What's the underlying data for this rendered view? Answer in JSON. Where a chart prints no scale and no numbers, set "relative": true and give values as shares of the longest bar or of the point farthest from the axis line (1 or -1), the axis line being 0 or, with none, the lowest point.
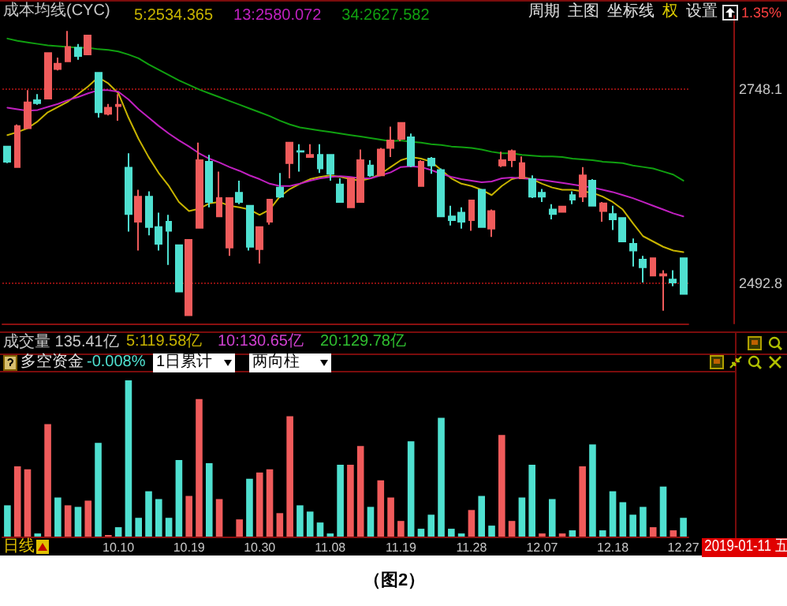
{
  "chart_data": [
    {
      "type": "candlestick",
      "title": "成本均线(CYC)",
      "categories": [
        null,
        null,
        null,
        null,
        null,
        null,
        null,
        null,
        null,
        null,
        null,
        "10.10",
        null,
        null,
        null,
        null,
        null,
        null,
        "10.19",
        null,
        null,
        null,
        null,
        null,
        null,
        "10.30",
        null,
        null,
        null,
        null,
        null,
        null,
        "11.08",
        null,
        null,
        null,
        null,
        null,
        null,
        "11.19",
        null,
        null,
        null,
        null,
        null,
        null,
        "11.28",
        null,
        null,
        null,
        null,
        null,
        null,
        "12.07",
        null,
        null,
        null,
        null,
        null,
        null,
        "12.18",
        null,
        null,
        null,
        null,
        null,
        null,
        "12.27"
      ],
      "ohlc": [
        [
          2673,
          2674,
          2651,
          2653
        ],
        [
          2646,
          2702,
          2646,
          2700
        ],
        [
          2697,
          2747,
          2697,
          2731
        ],
        [
          2734,
          2742,
          2728,
          2730
        ],
        [
          2736,
          2796,
          2736,
          2796
        ],
        [
          2775,
          2790,
          2773,
          2782
        ],
        [
          2785,
          2825,
          2785,
          2804
        ],
        [
          2803,
          2808,
          2787,
          2792
        ],
        [
          2794,
          2819,
          2794,
          2819
        ],
        [
          2770,
          2770,
          2711,
          2718
        ],
        [
          2716,
          2729,
          2714,
          2724
        ],
        [
          2726,
          2742,
          2707,
          2728
        ],
        [
          2645,
          2664,
          2561,
          2584
        ],
        [
          2574,
          2616,
          2536,
          2607
        ],
        [
          2607,
          2614,
          2556,
          2567
        ],
        [
          2567,
          2586,
          2536,
          2545
        ],
        [
          2574,
          2583,
          2517,
          2562
        ],
        [
          2543,
          2543,
          2482,
          2482
        ],
        [
          2451,
          2550,
          2451,
          2550
        ],
        [
          2566,
          2678,
          2566,
          2655
        ],
        [
          2653,
          2662,
          2593,
          2600
        ],
        [
          2581,
          2640,
          2581,
          2605
        ],
        [
          2540,
          2605,
          2529,
          2605
        ],
        [
          2612,
          2628,
          2597,
          2600
        ],
        [
          2595,
          2595,
          2536,
          2541
        ],
        [
          2538,
          2567,
          2519,
          2567
        ],
        [
          2574,
          2603,
          2570,
          2603
        ],
        [
          2619,
          2638,
          2605,
          2607
        ],
        [
          2651,
          2678,
          2631,
          2678
        ],
        [
          2667,
          2676,
          2640,
          2666
        ],
        [
          2659,
          2676,
          2659,
          2662
        ],
        [
          2662,
          2676,
          2638,
          2644
        ],
        [
          2662,
          2662,
          2628,
          2637
        ],
        [
          2623,
          2631,
          2600,
          2600
        ],
        [
          2593,
          2631,
          2593,
          2631
        ],
        [
          2600,
          2669,
          2600,
          2655
        ],
        [
          2648,
          2655,
          2633,
          2635
        ],
        [
          2635,
          2671,
          2635,
          2669
        ],
        [
          2671,
          2699,
          2659,
          2681
        ],
        [
          2683,
          2704,
          2680,
          2704
        ],
        [
          2685,
          2690,
          2646,
          2648
        ],
        [
          2621,
          2655,
          2621,
          2653
        ],
        [
          2657,
          2659,
          2637,
          2648
        ],
        [
          2642,
          2644,
          2581,
          2581
        ],
        [
          2581,
          2595,
          2569,
          2576
        ],
        [
          2586,
          2593,
          2565,
          2574
        ],
        [
          2576,
          2603,
          2562,
          2602
        ],
        [
          2616,
          2616,
          2567,
          2567
        ],
        [
          2565,
          2590,
          2554,
          2588
        ],
        [
          2648,
          2666,
          2646,
          2655
        ],
        [
          2655,
          2669,
          2646,
          2667
        ],
        [
          2631,
          2660,
          2631,
          2651
        ],
        [
          2630,
          2635,
          2605,
          2607
        ],
        [
          2612,
          2617,
          2600,
          2607
        ],
        [
          2590,
          2597,
          2577,
          2584
        ],
        [
          2587,
          2594,
          2587,
          2594
        ],
        [
          2609,
          2614,
          2597,
          2603
        ],
        [
          2607,
          2646,
          2600,
          2635
        ],
        [
          2628,
          2630,
          2595,
          2595
        ],
        [
          2588,
          2600,
          2574,
          2598
        ],
        [
          2584,
          2595,
          2563,
          2577
        ],
        [
          2579,
          2579,
          2547,
          2548
        ],
        [
          2545,
          2552,
          2515,
          2536
        ],
        [
          2524,
          2529,
          2494,
          2514
        ],
        [
          2503,
          2526,
          2503,
          2526
        ],
        [
          2503,
          2510,
          2457,
          2505
        ],
        [
          2498,
          2510,
          2489,
          2494
        ],
        [
          2526,
          2527,
          2478,
          2479
        ]
      ],
      "colors": [
        "#4fe0d0",
        "#f05b5b",
        "#f05b5b",
        "#4fe0d0",
        "#f05b5b",
        "#f05b5b",
        "#f05b5b",
        "#4fe0d0",
        "#f05b5b",
        "#4fe0d0",
        "#f05b5b",
        "#f05b5b",
        "#4fe0d0",
        "#f05b5b",
        "#4fe0d0",
        "#4fe0d0",
        "#4fe0d0",
        "#4fe0d0",
        "#f05b5b",
        "#f05b5b",
        "#4fe0d0",
        "#f05b5b",
        "#f05b5b",
        "#4fe0d0",
        "#4fe0d0",
        "#f05b5b",
        "#f05b5b",
        "#4fe0d0",
        "#f05b5b",
        "#4fe0d0",
        "#f05b5b",
        "#4fe0d0",
        "#4fe0d0",
        "#4fe0d0",
        "#f05b5b",
        "#f05b5b",
        "#4fe0d0",
        "#f05b5b",
        "#f05b5b",
        "#f05b5b",
        "#4fe0d0",
        "#f05b5b",
        "#4fe0d0",
        "#4fe0d0",
        "#4fe0d0",
        "#4fe0d0",
        "#f05b5b",
        "#4fe0d0",
        "#f05b5b",
        "#f05b5b",
        "#f05b5b",
        "#f05b5b",
        "#4fe0d0",
        "#4fe0d0",
        "#4fe0d0",
        "#f05b5b",
        "#4fe0d0",
        "#f05b5b",
        "#4fe0d0",
        "#f05b5b",
        "#4fe0d0",
        "#4fe0d0",
        "#4fe0d0",
        "#4fe0d0",
        "#f05b5b",
        "#f05b5b",
        "#4fe0d0",
        "#4fe0d0"
      ],
      "series": [
        {
          "type": "line",
          "name": "5:2534.365",
          "color": "#c8b400",
          "values": [
            2688,
            2692,
            2697,
            2706,
            2718,
            2725,
            2732,
            2742,
            2752,
            2764,
            2756,
            2743,
            2711,
            2683,
            2659,
            2638,
            2621,
            2600,
            2588,
            2591,
            2598,
            2600,
            2595,
            2593,
            2590,
            2583,
            2590,
            2607,
            2617,
            2624,
            2630,
            2633,
            2635,
            2633,
            2630,
            2628,
            2631,
            2637,
            2646,
            2655,
            2659,
            2657,
            2653,
            2642,
            2631,
            2624,
            2621,
            2616,
            2609,
            2621,
            2630,
            2633,
            2630,
            2624,
            2619,
            2616,
            2616,
            2614,
            2612,
            2607,
            2600,
            2590,
            2572,
            2555,
            2548,
            2541,
            2536,
            2534
          ]
        },
        {
          "type": "line",
          "name": "13:2580.072",
          "color": "#c020c0",
          "values": [
            2724,
            2722,
            2720,
            2721,
            2725,
            2729,
            2734,
            2738,
            2743,
            2747,
            2747,
            2745,
            2735,
            2722,
            2711,
            2700,
            2690,
            2681,
            2673,
            2664,
            2657,
            2652,
            2646,
            2641,
            2635,
            2630,
            2624,
            2621,
            2621,
            2624,
            2628,
            2631,
            2633,
            2634,
            2633,
            2631,
            2631,
            2635,
            2639,
            2646,
            2647,
            2646,
            2642,
            2637,
            2633,
            2630,
            2628,
            2626,
            2627,
            2631,
            2632,
            2631,
            2630,
            2629,
            2627,
            2625,
            2623,
            2621,
            2619,
            2616,
            2613,
            2609,
            2605,
            2600,
            2595,
            2590,
            2585,
            2581
          ]
        },
        {
          "type": "line",
          "name": "34:2627.582",
          "color": "#10a010",
          "values": [
            2815,
            2812,
            2810,
            2808,
            2806,
            2805,
            2804,
            2803,
            2803,
            2801,
            2800,
            2798,
            2794,
            2789,
            2781,
            2774,
            2767,
            2760,
            2754,
            2748,
            2743,
            2738,
            2733,
            2728,
            2723,
            2718,
            2713,
            2707,
            2702,
            2698,
            2696,
            2694,
            2692,
            2690,
            2688,
            2686,
            2684,
            2682,
            2680,
            2681,
            2679,
            2678,
            2676,
            2675,
            2673,
            2672,
            2671,
            2669,
            2666,
            2664,
            2664,
            2662,
            2661,
            2660,
            2660,
            2659,
            2657,
            2656,
            2655,
            2653,
            2652,
            2651,
            2648,
            2646,
            2644,
            2640,
            2636,
            2628
          ]
        }
      ],
      "ylim": [
        2440,
        2845
      ],
      "yticks": [
        2492.8,
        2748.1
      ],
      "grid": "y",
      "legend": "top left",
      "tick_labels": "y",
      "annotations": [
        "周期",
        "主图",
        "坐标线",
        "权",
        "设置",
        "1.35%"
      ]
    },
    {
      "type": "bar",
      "title": "成交量 135.41亿",
      "relative": true,
      "categories": [
        null,
        null,
        null,
        null,
        null,
        null,
        null,
        null,
        null,
        null,
        null,
        "10.10",
        null,
        null,
        null,
        null,
        null,
        null,
        "10.19",
        null,
        null,
        null,
        null,
        null,
        null,
        "10.30",
        null,
        null,
        null,
        null,
        null,
        null,
        "11.08",
        null,
        null,
        null,
        null,
        null,
        null,
        "11.19",
        null,
        null,
        null,
        null,
        null,
        null,
        "11.28",
        null,
        null,
        null,
        null,
        null,
        null,
        "12.07",
        null,
        null,
        null,
        null,
        null,
        null,
        "12.18",
        null,
        null,
        null,
        null,
        null,
        null,
        "12.27"
      ],
      "values": [
        0.2,
        0.45,
        0.43,
        0.02,
        0.72,
        0.25,
        0.2,
        0.19,
        0.23,
        0.6,
        0.01,
        0.06,
        1,
        0.12,
        0.29,
        0.24,
        0.12,
        0.49,
        0.26,
        0.88,
        0.47,
        0.24,
        null,
        0.11,
        0.37,
        0.41,
        0.43,
        0.15,
        0.77,
        0.2,
        0.16,
        0.09,
        0.02,
        0.46,
        0.46,
        0.58,
        0.19,
        0.36,
        0.25,
        0.1,
        0.61,
        0.05,
        0.14,
        0.76,
        0.05,
        0.02,
        0.17,
        0.26,
        0.07,
        0.65,
        0.1,
        0.25,
        0.46,
        0.02,
        0.24,
        0.02,
        0.04,
        0.45,
        0.59,
        0.04,
        0.29,
        0.22,
        0.14,
        0.19,
        0.06,
        0.32,
        0.04,
        0.12
      ],
      "colors": [
        "#4fe0d0",
        "#f05b5b",
        "#f05b5b",
        "#4fe0d0",
        "#f05b5b",
        "#4fe0d0",
        "#f05b5b",
        "#4fe0d0",
        "#f05b5b",
        "#4fe0d0",
        "#f05b5b",
        "#4fe0d0",
        "#4fe0d0",
        "#4fe0d0",
        "#4fe0d0",
        "#4fe0d0",
        "#4fe0d0",
        "#4fe0d0",
        "#f05b5b",
        "#f05b5b",
        "#4fe0d0",
        "#f05b5b",
        "#f05b5b",
        "#f05b5b",
        "#4fe0d0",
        "#f05b5b",
        "#f05b5b",
        "#f05b5b",
        "#f05b5b",
        "#4fe0d0",
        "#4fe0d0",
        "#4fe0d0",
        "#4fe0d0",
        "#4fe0d0",
        "#f05b5b",
        "#f05b5b",
        "#4fe0d0",
        "#f05b5b",
        "#f05b5b",
        "#f05b5b",
        "#4fe0d0",
        "#4fe0d0",
        "#4fe0d0",
        "#4fe0d0",
        "#4fe0d0",
        "#4fe0d0",
        "#f05b5b",
        "#4fe0d0",
        "#4fe0d0",
        "#f05b5b",
        "#f05b5b",
        "#4fe0d0",
        "#4fe0d0",
        "#f05b5b",
        "#4fe0d0",
        "#f05b5b",
        "#4fe0d0",
        "#f05b5b",
        "#4fe0d0",
        "#4fe0d0",
        "#4fe0d0",
        "#4fe0d0",
        "#4fe0d0",
        "#4fe0d0",
        "#f05b5b",
        "#4fe0d0",
        "#f05b5b",
        "#4fe0d0"
      ],
      "tick_labels": "x",
      "annotations": [
        "5:119.58亿",
        "10:130.65亿",
        "20:129.78亿",
        "多空资金",
        "-0.008%",
        "1日累计",
        "两向柱",
        "日线",
        "2019-01-11 五",
        "（图2）"
      ]
    }
  ]
}
